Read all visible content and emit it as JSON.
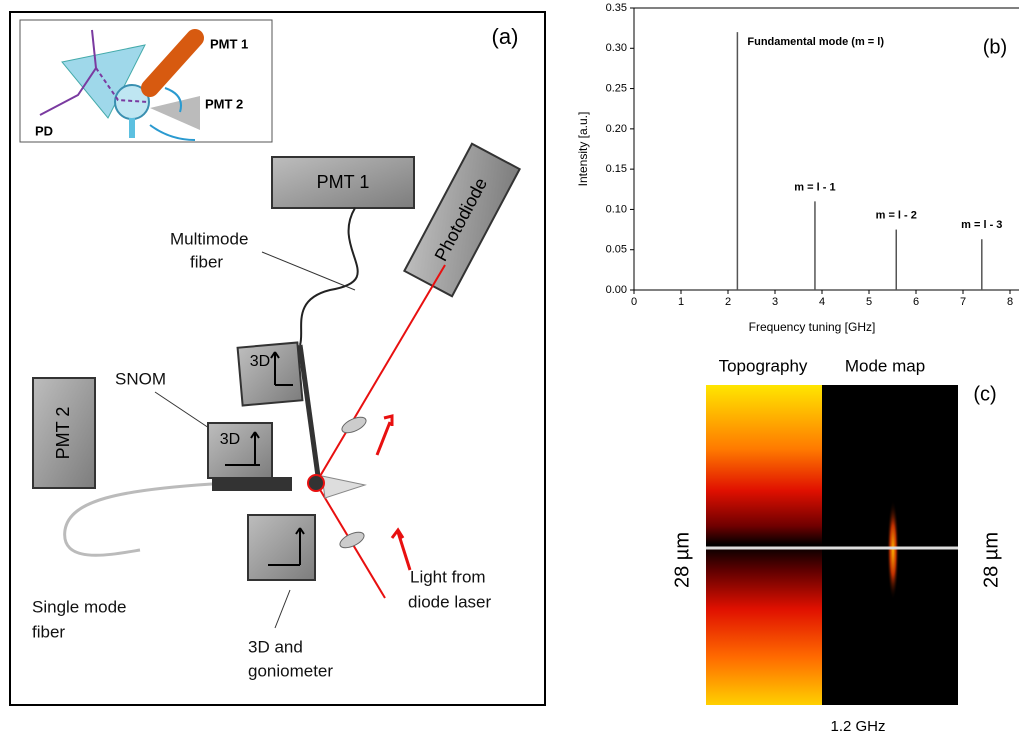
{
  "panel_a": {
    "label": "(a)",
    "inset": {
      "pmt1": "PMT 1",
      "pmt2": "PMT 2",
      "pd": "PD"
    },
    "pmt1": "PMT 1",
    "pmt2": "PMT 2",
    "photodiode": "Photodiode",
    "stage_top": "3D",
    "stage_snom": "3D",
    "multimode_fiber": [
      "Multimode",
      "fiber"
    ],
    "snom": "SNOM",
    "single_mode_fiber": [
      "Single mode",
      "fiber"
    ],
    "light": [
      "Light from",
      "diode laser"
    ],
    "goniometer": [
      "3D and",
      "goniometer"
    ]
  },
  "chart_data": {
    "type": "stem",
    "label": "(b)",
    "x_label": "Frequency tuning [GHz]",
    "y_label": "Intensity [a.u.]",
    "x": [
      2.2,
      3.85,
      5.58,
      7.4
    ],
    "values": [
      0.32,
      0.11,
      0.075,
      0.063
    ],
    "peak_labels": [
      "Fundamental mode (m = l)",
      "m = l - 1",
      "m = l - 2",
      "m = l - 3"
    ],
    "color": "#555555",
    "xlim": [
      0,
      8
    ],
    "xticks": [
      0,
      1,
      2,
      3,
      4,
      5,
      6,
      7,
      8
    ],
    "ylim": [
      0,
      0.35
    ],
    "yticks": [
      {
        "value": 0,
        "label": "0.00"
      },
      0.05,
      {
        "value": 0.1,
        "label": "0.10"
      },
      0.15,
      {
        "value": 0.2,
        "label": "0.20"
      },
      0.25,
      {
        "value": 0.3,
        "label": "0.30"
      },
      0.35
    ]
  },
  "panel_c": {
    "label": "(c)",
    "topography": "Topography",
    "mode_map": "Mode map",
    "scale_left": "28 µm",
    "scale_right": "28 µm",
    "frequency": "1.2 GHz"
  }
}
